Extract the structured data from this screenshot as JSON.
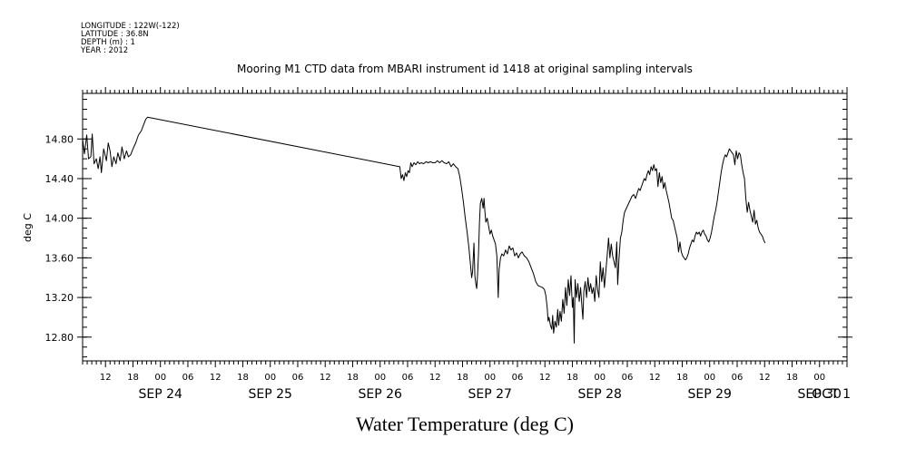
{
  "header": {
    "lines": [
      "LONGITUDE : 122W(-122)",
      "LATITUDE : 36.8N",
      "DEPTH (m) : 1",
      "YEAR : 2012"
    ]
  },
  "chart_data": {
    "type": "line",
    "title": "Mooring M1 CTD data from MBARI instrument id 1418 at original sampling intervals",
    "xlabel": "Water Temperature (deg C)",
    "ylabel": "deg C",
    "xlim": [
      7,
      174
    ],
    "ylim": [
      12.56,
      15.26
    ],
    "y_ticks": [
      12.8,
      13.2,
      13.6,
      14.0,
      14.4,
      14.8
    ],
    "y_tick_labels": [
      "12.80",
      "13.20",
      "13.60",
      "14.00",
      "14.40",
      "14.80"
    ],
    "x_minor_ticks": [
      12,
      18,
      24,
      30,
      36,
      42,
      48,
      54,
      60,
      66,
      72,
      78,
      84,
      90,
      96,
      102,
      108,
      114,
      120,
      126,
      132,
      138,
      144,
      150,
      156,
      162,
      168
    ],
    "x_minor_labels": [
      "12",
      "18",
      "00",
      "06",
      "12",
      "18",
      "00",
      "06",
      "12",
      "18",
      "00",
      "06",
      "12",
      "18",
      "00",
      "06",
      "12",
      "18",
      "00",
      "06",
      "12",
      "18",
      "00",
      "06",
      "12",
      "18",
      "00"
    ],
    "x_major_positions": [
      24,
      48,
      72,
      96,
      120,
      144,
      168,
      174
    ],
    "x_major_labels": [
      "SEP 24",
      "SEP 25",
      "SEP 26",
      "SEP 27",
      "SEP 28",
      "SEP 29",
      "SEP 30",
      "OCT  1"
    ],
    "x_units": "hours from SEP 23 00:00 2012",
    "series": [
      {
        "color": "#000000",
        "points": [
          [
            7.0,
            14.8
          ],
          [
            7.4,
            14.65
          ],
          [
            7.9,
            14.84
          ],
          [
            8.3,
            14.6
          ],
          [
            8.8,
            14.62
          ],
          [
            9.1,
            14.85
          ],
          [
            9.5,
            14.55
          ],
          [
            10.0,
            14.6
          ],
          [
            10.4,
            14.5
          ],
          [
            10.8,
            14.62
          ],
          [
            11.1,
            14.46
          ],
          [
            11.6,
            14.7
          ],
          [
            12.2,
            14.58
          ],
          [
            12.6,
            14.76
          ],
          [
            13.0,
            14.68
          ],
          [
            13.4,
            14.52
          ],
          [
            13.8,
            14.62
          ],
          [
            14.3,
            14.55
          ],
          [
            14.7,
            14.66
          ],
          [
            15.2,
            14.58
          ],
          [
            15.6,
            14.72
          ],
          [
            16.1,
            14.6
          ],
          [
            16.6,
            14.68
          ],
          [
            17.0,
            14.62
          ],
          [
            17.5,
            14.64
          ],
          [
            18.0,
            14.7
          ],
          [
            18.6,
            14.76
          ],
          [
            19.2,
            14.84
          ],
          [
            19.8,
            14.88
          ],
          [
            20.3,
            14.94
          ],
          [
            20.8,
            15.0
          ],
          [
            21.2,
            15.02
          ],
          [
            76.3,
            14.52
          ],
          [
            76.6,
            14.4
          ],
          [
            76.9,
            14.44
          ],
          [
            77.2,
            14.38
          ],
          [
            77.5,
            14.46
          ],
          [
            77.8,
            14.42
          ],
          [
            78.1,
            14.48
          ],
          [
            78.4,
            14.46
          ],
          [
            78.7,
            14.56
          ],
          [
            79.0,
            14.52
          ],
          [
            79.4,
            14.56
          ],
          [
            79.8,
            14.54
          ],
          [
            80.2,
            14.57
          ],
          [
            80.6,
            14.55
          ],
          [
            81.0,
            14.56
          ],
          [
            81.5,
            14.55
          ],
          [
            82.0,
            14.57
          ],
          [
            82.5,
            14.56
          ],
          [
            83.0,
            14.57
          ],
          [
            83.5,
            14.56
          ],
          [
            84.0,
            14.56
          ],
          [
            84.5,
            14.58
          ],
          [
            85.0,
            14.56
          ],
          [
            85.5,
            14.58
          ],
          [
            86.0,
            14.56
          ],
          [
            86.5,
            14.55
          ],
          [
            87.0,
            14.57
          ],
          [
            87.5,
            14.52
          ],
          [
            88.0,
            14.55
          ],
          [
            88.5,
            14.52
          ],
          [
            89.0,
            14.5
          ],
          [
            89.4,
            14.42
          ],
          [
            89.8,
            14.3
          ],
          [
            90.2,
            14.16
          ],
          [
            90.6,
            14.0
          ],
          [
            91.0,
            13.86
          ],
          [
            91.4,
            13.7
          ],
          [
            91.7,
            13.55
          ],
          [
            92.0,
            13.4
          ],
          [
            92.2,
            13.46
          ],
          [
            92.5,
            13.75
          ],
          [
            92.7,
            13.42
          ],
          [
            92.9,
            13.34
          ],
          [
            93.1,
            13.29
          ],
          [
            93.3,
            13.44
          ],
          [
            93.5,
            13.65
          ],
          [
            93.7,
            13.95
          ],
          [
            93.9,
            14.15
          ],
          [
            94.2,
            14.2
          ],
          [
            94.5,
            14.1
          ],
          [
            94.7,
            14.2
          ],
          [
            94.9,
            14.06
          ],
          [
            95.1,
            13.96
          ],
          [
            95.4,
            14.0
          ],
          [
            95.7,
            13.92
          ],
          [
            96.0,
            13.84
          ],
          [
            96.3,
            13.88
          ],
          [
            96.6,
            13.82
          ],
          [
            96.9,
            13.78
          ],
          [
            97.2,
            13.74
          ],
          [
            97.5,
            13.62
          ],
          [
            97.8,
            13.2
          ],
          [
            98.0,
            13.48
          ],
          [
            98.3,
            13.6
          ],
          [
            98.6,
            13.64
          ],
          [
            99.0,
            13.62
          ],
          [
            99.4,
            13.68
          ],
          [
            99.8,
            13.64
          ],
          [
            100.2,
            13.72
          ],
          [
            100.6,
            13.68
          ],
          [
            101.0,
            13.7
          ],
          [
            101.4,
            13.62
          ],
          [
            101.8,
            13.65
          ],
          [
            102.2,
            13.6
          ],
          [
            102.6,
            13.64
          ],
          [
            103.0,
            13.66
          ],
          [
            103.5,
            13.62
          ],
          [
            104.0,
            13.6
          ],
          [
            104.5,
            13.56
          ],
          [
            105.0,
            13.5
          ],
          [
            105.5,
            13.44
          ],
          [
            106.0,
            13.36
          ],
          [
            106.5,
            13.32
          ],
          [
            107.0,
            13.31
          ],
          [
            107.5,
            13.3
          ],
          [
            107.9,
            13.28
          ],
          [
            108.2,
            13.22
          ],
          [
            108.5,
            13.1
          ],
          [
            108.7,
            12.96
          ],
          [
            108.9,
            13.0
          ],
          [
            109.2,
            12.92
          ],
          [
            109.5,
            12.88
          ],
          [
            109.7,
            13.02
          ],
          [
            109.9,
            12.84
          ],
          [
            110.2,
            12.96
          ],
          [
            110.5,
            12.9
          ],
          [
            110.8,
            13.08
          ],
          [
            111.0,
            12.92
          ],
          [
            111.3,
            13.06
          ],
          [
            111.6,
            12.96
          ],
          [
            111.9,
            13.18
          ],
          [
            112.2,
            13.04
          ],
          [
            112.5,
            13.3
          ],
          [
            112.8,
            13.12
          ],
          [
            113.1,
            13.38
          ],
          [
            113.4,
            13.22
          ],
          [
            113.7,
            13.42
          ],
          [
            114.0,
            13.1
          ],
          [
            114.2,
            13.2
          ],
          [
            114.4,
            12.74
          ],
          [
            114.6,
            13.38
          ],
          [
            114.9,
            13.2
          ],
          [
            115.2,
            13.34
          ],
          [
            115.5,
            13.16
          ],
          [
            115.8,
            13.3
          ],
          [
            116.1,
            13.1
          ],
          [
            116.3,
            12.98
          ],
          [
            116.5,
            13.26
          ],
          [
            116.8,
            13.36
          ],
          [
            117.1,
            13.2
          ],
          [
            117.4,
            13.4
          ],
          [
            117.7,
            13.26
          ],
          [
            118.0,
            13.34
          ],
          [
            118.3,
            13.24
          ],
          [
            118.6,
            13.3
          ],
          [
            118.9,
            13.16
          ],
          [
            119.2,
            13.42
          ],
          [
            119.5,
            13.28
          ],
          [
            119.8,
            13.2
          ],
          [
            120.1,
            13.56
          ],
          [
            120.4,
            13.36
          ],
          [
            120.7,
            13.5
          ],
          [
            121.0,
            13.3
          ],
          [
            121.3,
            13.46
          ],
          [
            121.6,
            13.62
          ],
          [
            121.9,
            13.8
          ],
          [
            122.2,
            13.6
          ],
          [
            122.5,
            13.74
          ],
          [
            122.8,
            13.62
          ],
          [
            123.1,
            13.56
          ],
          [
            123.4,
            13.5
          ],
          [
            123.7,
            13.76
          ],
          [
            123.9,
            13.33
          ],
          [
            124.2,
            13.6
          ],
          [
            124.5,
            13.8
          ],
          [
            124.8,
            13.86
          ],
          [
            125.1,
            13.98
          ],
          [
            125.4,
            14.06
          ],
          [
            125.8,
            14.1
          ],
          [
            126.2,
            14.14
          ],
          [
            126.6,
            14.18
          ],
          [
            127.0,
            14.22
          ],
          [
            127.4,
            14.24
          ],
          [
            127.8,
            14.2
          ],
          [
            128.2,
            14.26
          ],
          [
            128.5,
            14.3
          ],
          [
            128.8,
            14.28
          ],
          [
            129.1,
            14.32
          ],
          [
            129.4,
            14.36
          ],
          [
            129.7,
            14.4
          ],
          [
            130.0,
            14.38
          ],
          [
            130.3,
            14.44
          ],
          [
            130.6,
            14.48
          ],
          [
            130.9,
            14.44
          ],
          [
            131.2,
            14.52
          ],
          [
            131.5,
            14.48
          ],
          [
            131.8,
            14.54
          ],
          [
            132.1,
            14.48
          ],
          [
            132.4,
            14.5
          ],
          [
            132.7,
            14.32
          ],
          [
            133.0,
            14.46
          ],
          [
            133.3,
            14.36
          ],
          [
            133.6,
            14.42
          ],
          [
            133.9,
            14.3
          ],
          [
            134.2,
            14.36
          ],
          [
            134.5,
            14.28
          ],
          [
            134.8,
            14.22
          ],
          [
            135.1,
            14.16
          ],
          [
            135.4,
            14.08
          ],
          [
            135.7,
            14.0
          ],
          [
            136.0,
            13.98
          ],
          [
            136.3,
            13.92
          ],
          [
            136.6,
            13.86
          ],
          [
            136.9,
            13.8
          ],
          [
            137.2,
            13.66
          ],
          [
            137.5,
            13.76
          ],
          [
            137.8,
            13.66
          ],
          [
            138.1,
            13.62
          ],
          [
            138.4,
            13.6
          ],
          [
            138.7,
            13.58
          ],
          [
            139.0,
            13.6
          ],
          [
            139.3,
            13.64
          ],
          [
            139.6,
            13.7
          ],
          [
            139.9,
            13.74
          ],
          [
            140.2,
            13.78
          ],
          [
            140.5,
            13.76
          ],
          [
            140.8,
            13.82
          ],
          [
            141.1,
            13.86
          ],
          [
            141.4,
            13.84
          ],
          [
            141.7,
            13.86
          ],
          [
            142.0,
            13.82
          ],
          [
            142.3,
            13.86
          ],
          [
            142.6,
            13.88
          ],
          [
            142.9,
            13.84
          ],
          [
            143.2,
            13.82
          ],
          [
            143.5,
            13.78
          ],
          [
            143.8,
            13.76
          ],
          [
            144.1,
            13.8
          ],
          [
            144.4,
            13.86
          ],
          [
            144.7,
            13.94
          ],
          [
            145.0,
            14.02
          ],
          [
            145.3,
            14.08
          ],
          [
            145.6,
            14.16
          ],
          [
            145.9,
            14.26
          ],
          [
            146.2,
            14.36
          ],
          [
            146.5,
            14.46
          ],
          [
            146.8,
            14.54
          ],
          [
            147.1,
            14.6
          ],
          [
            147.4,
            14.64
          ],
          [
            147.7,
            14.62
          ],
          [
            148.0,
            14.66
          ],
          [
            148.3,
            14.7
          ],
          [
            148.6,
            14.68
          ],
          [
            148.9,
            14.66
          ],
          [
            149.2,
            14.64
          ],
          [
            149.5,
            14.54
          ],
          [
            149.8,
            14.68
          ],
          [
            150.1,
            14.6
          ],
          [
            150.4,
            14.66
          ],
          [
            150.7,
            14.64
          ],
          [
            151.0,
            14.54
          ],
          [
            151.3,
            14.46
          ],
          [
            151.6,
            14.4
          ],
          [
            151.9,
            14.2
          ],
          [
            152.2,
            14.06
          ],
          [
            152.5,
            14.16
          ],
          [
            152.8,
            14.08
          ],
          [
            153.1,
            14.02
          ],
          [
            153.4,
            13.96
          ],
          [
            153.7,
            14.08
          ],
          [
            154.0,
            13.94
          ],
          [
            154.3,
            13.98
          ],
          [
            154.6,
            13.9
          ],
          [
            154.9,
            13.86
          ],
          [
            155.2,
            13.84
          ],
          [
            155.5,
            13.82
          ],
          [
            155.8,
            13.78
          ],
          [
            156.1,
            13.75
          ]
        ]
      }
    ]
  }
}
